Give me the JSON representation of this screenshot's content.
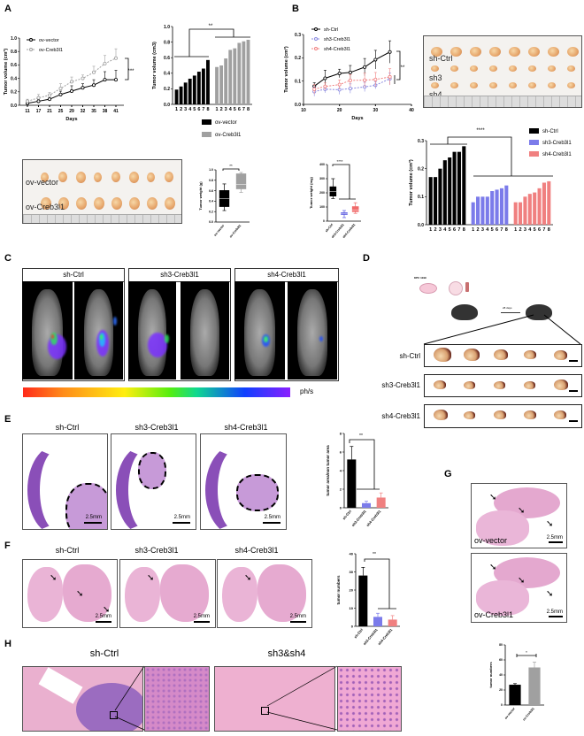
{
  "panel_labels": [
    "A",
    "B",
    "C",
    "D",
    "E",
    "F",
    "G",
    "H"
  ],
  "photo_A": {
    "rows": [
      "ov-vector",
      "ov-Creb3l1"
    ]
  },
  "photo_B": {
    "rows": [
      "sh-Ctrl",
      "sh3",
      "sh4"
    ]
  },
  "panel_C": {
    "groups": [
      "sh-Ctrl",
      "sh3-Creb3l1",
      "sh4-Creb3l1"
    ],
    "colorbar_unit": "ph/s"
  },
  "panel_D": {
    "cell_label": "KPC 1199",
    "time_label": "28 days",
    "rows": [
      "sh-Ctrl",
      "sh3-Creb3l1",
      "sh4-Creb3l1"
    ]
  },
  "panel_E": {
    "headers": [
      "sh-Ctrl",
      "sh3-Creb3l1",
      "sh4-Creb3l1"
    ],
    "scale": "2.5mm"
  },
  "panel_F": {
    "headers": [
      "sh-Ctrl",
      "sh3-Creb3l1",
      "sh4-Creb3l1"
    ],
    "scale": "2.5mm"
  },
  "panel_G": {
    "labels": [
      "ov-vector",
      "ov-Creb3l1"
    ],
    "scale": "2.5mm"
  },
  "panel_H": {
    "headers": [
      "sh-Ctrl",
      "sh3&sh4"
    ]
  },
  "colors": {
    "ov_vector": "#000000",
    "ov_creb3l1": "#a0a0a0",
    "sh_ctrl": "#000000",
    "sh3": "#7b7bea",
    "sh4": "#f08080"
  },
  "chart_data": [
    {
      "type": "line",
      "panel": "A",
      "xlabel": "Days",
      "ylabel": "Tumor volume (cm³)",
      "x": [
        11,
        17,
        21,
        25,
        29,
        32,
        35,
        38,
        41
      ],
      "ylim": [
        0,
        1.0
      ],
      "yticks": [
        "0.0",
        "0.2",
        "0.4",
        "0.6",
        "0.8",
        "1.0"
      ],
      "legend": "top-left",
      "significance": "***",
      "series": [
        {
          "name": "ov-vector",
          "color": "#000000",
          "dashed": false,
          "values": [
            0.03,
            0.06,
            0.09,
            0.16,
            0.21,
            0.26,
            0.3,
            0.38,
            0.38
          ],
          "err": [
            0.01,
            0.02,
            0.02,
            0.05,
            0.08,
            0.06,
            0.08,
            0.12,
            0.14
          ]
        },
        {
          "name": "ov-Creb3l1",
          "color": "#a0a0a0",
          "dashed": true,
          "values": [
            0.06,
            0.11,
            0.15,
            0.25,
            0.35,
            0.4,
            0.49,
            0.62,
            0.7
          ],
          "err": [
            0.03,
            0.05,
            0.04,
            0.07,
            0.07,
            0.05,
            0.09,
            0.12,
            0.14
          ]
        }
      ]
    },
    {
      "type": "bar",
      "panel": "A",
      "ylabel": "Tumor volume (cm3)",
      "ylim": [
        0,
        1.0
      ],
      "yticks": [
        "0.0",
        "0.2",
        "0.4",
        "0.6",
        "0.8",
        "1.0"
      ],
      "bar_labels": [
        "1",
        "2",
        "3",
        "4",
        "5",
        "6",
        "7",
        "8"
      ],
      "legend": "bottom",
      "significance": "**",
      "series": [
        {
          "name": "ov-vector",
          "color": "#000000",
          "values": [
            0.19,
            0.23,
            0.28,
            0.33,
            0.37,
            0.42,
            0.46,
            0.57
          ]
        },
        {
          "name": "ov-Creb3l1",
          "color": "#a0a0a0",
          "values": [
            0.48,
            0.5,
            0.59,
            0.7,
            0.72,
            0.79,
            0.81,
            0.83
          ]
        }
      ]
    },
    {
      "type": "line",
      "panel": "B",
      "xlabel": "Days",
      "ylabel": "Tumor volume (cm³)",
      "x": [
        13,
        16,
        20,
        23,
        27,
        30,
        34
      ],
      "xlim": [
        10,
        40
      ],
      "xticks": [
        "10",
        "20",
        "30",
        "40"
      ],
      "ylim": [
        0,
        0.3
      ],
      "yticks": [
        "0.0",
        "0.1",
        "0.2",
        "0.3"
      ],
      "legend": "top-left",
      "significance": "**",
      "series": [
        {
          "name": "sh-Ctrl",
          "color": "#000000",
          "dashed": false,
          "values": [
            0.078,
            0.112,
            0.133,
            0.137,
            0.16,
            0.192,
            0.225
          ],
          "err": [
            0.015,
            0.035,
            0.018,
            0.03,
            0.037,
            0.04,
            0.048
          ]
        },
        {
          "name": "sh3-Creb3l1",
          "color": "#8a8ae0",
          "dashed": true,
          "values": [
            0.055,
            0.065,
            0.063,
            0.068,
            0.075,
            0.082,
            0.11
          ],
          "err": [
            0.02,
            0.015,
            0.02,
            0.02,
            0.02,
            0.015,
            0.025
          ]
        },
        {
          "name": "sh4-Creb3l1",
          "color": "#f08080",
          "dashed": true,
          "values": [
            0.065,
            0.077,
            0.085,
            0.103,
            0.104,
            0.107,
            0.118
          ],
          "err": [
            0.02,
            0.015,
            0.02,
            0.025,
            0.03,
            0.03,
            0.035
          ]
        }
      ]
    },
    {
      "type": "bar",
      "panel": "B",
      "ylabel": "Tumor volume (cm³)",
      "ylim": [
        0,
        0.3
      ],
      "yticks": [
        "0.0",
        "0.1",
        "0.2",
        "0.3"
      ],
      "bar_labels": [
        "1",
        "2",
        "3",
        "4",
        "5",
        "6",
        "7",
        "8"
      ],
      "legend": "right",
      "significance": "****",
      "series": [
        {
          "name": "sh-Ctrl",
          "color": "#000000",
          "values": [
            0.17,
            0.17,
            0.2,
            0.23,
            0.24,
            0.26,
            0.26,
            0.28
          ]
        },
        {
          "name": "sh3-Creb3l1",
          "color": "#7b7bea",
          "values": [
            0.08,
            0.1,
            0.1,
            0.1,
            0.12,
            0.125,
            0.13,
            0.14
          ]
        },
        {
          "name": "sh4-Creb3l1",
          "color": "#f08080",
          "values": [
            0.08,
            0.08,
            0.1,
            0.11,
            0.115,
            0.13,
            0.15,
            0.155
          ]
        }
      ]
    },
    {
      "type": "box",
      "panel": "A",
      "ylabel": "Tumor weight (g)",
      "ylim": [
        0,
        1.0
      ],
      "yticks": [
        "0.0",
        "0.2",
        "0.4",
        "0.6",
        "0.8",
        "1.0"
      ],
      "categories": [
        "ov-vector",
        "ov-Creb3l1"
      ],
      "colors": [
        "#000000",
        "#a0a0a0"
      ],
      "significance": "**",
      "boxes": [
        {
          "min": 0.22,
          "q1": 0.29,
          "median": 0.45,
          "q3": 0.61,
          "max": 0.73
        },
        {
          "min": 0.57,
          "q1": 0.63,
          "median": 0.72,
          "q3": 0.93,
          "max": 0.95
        }
      ]
    },
    {
      "type": "box",
      "panel": "B",
      "ylabel": "Tumor weight (mg)",
      "ylim": [
        0,
        400
      ],
      "yticks": [
        "0",
        "100",
        "200",
        "300",
        "400"
      ],
      "categories": [
        "sh-Ctrl",
        "sh3-Creb3l1",
        "sh4-Creb3l1"
      ],
      "colors": [
        "#000000",
        "#5a5ae0",
        "#f06a6a"
      ],
      "significance": "****",
      "boxes": [
        {
          "min": 160,
          "q1": 175,
          "median": 210,
          "q3": 245,
          "max": 300
        },
        {
          "min": 25,
          "q1": 45,
          "median": 55,
          "q3": 62,
          "max": 75
        },
        {
          "min": 55,
          "q1": 65,
          "median": 80,
          "q3": 105,
          "max": 130
        }
      ]
    },
    {
      "type": "bar",
      "panel": "E",
      "ylabel": "tumor area/non tumor area",
      "ylim": [
        0,
        8
      ],
      "yticks": [
        "0",
        "2",
        "4",
        "6",
        "8"
      ],
      "categories": [
        "sh-Ctrl",
        "sh3-Creb3l1",
        "sh4-Creb3l1"
      ],
      "values": [
        5.2,
        0.5,
        1.1
      ],
      "errors": [
        1.4,
        0.2,
        0.5
      ],
      "colors": [
        "#000000",
        "#7b7bea",
        "#f08080"
      ],
      "significance": "**"
    },
    {
      "type": "bar",
      "panel": "F",
      "ylabel": "tumor numbers",
      "ylim": [
        0,
        40
      ],
      "yticks": [
        "0",
        "10",
        "20",
        "30",
        "40"
      ],
      "categories": [
        "sh-Ctrl",
        "sh3-Creb3l1",
        "sh4-Creb3l1"
      ],
      "values": [
        28,
        5.2,
        3.7
      ],
      "errors": [
        4.5,
        2.0,
        2.2
      ],
      "colors": [
        "#000000",
        "#7b7bea",
        "#f08080"
      ],
      "significance": "**"
    },
    {
      "type": "bar",
      "panel": "G",
      "ylabel": "tumor numbers",
      "ylim": [
        0,
        80
      ],
      "yticks": [
        "0",
        "20",
        "40",
        "60",
        "80"
      ],
      "categories": [
        "ov-vector",
        "ov-Creb3l1"
      ],
      "values": [
        27,
        50
      ],
      "errors": [
        1.5,
        7
      ],
      "colors": [
        "#000000",
        "#a0a0a0"
      ],
      "significance": "*"
    }
  ]
}
